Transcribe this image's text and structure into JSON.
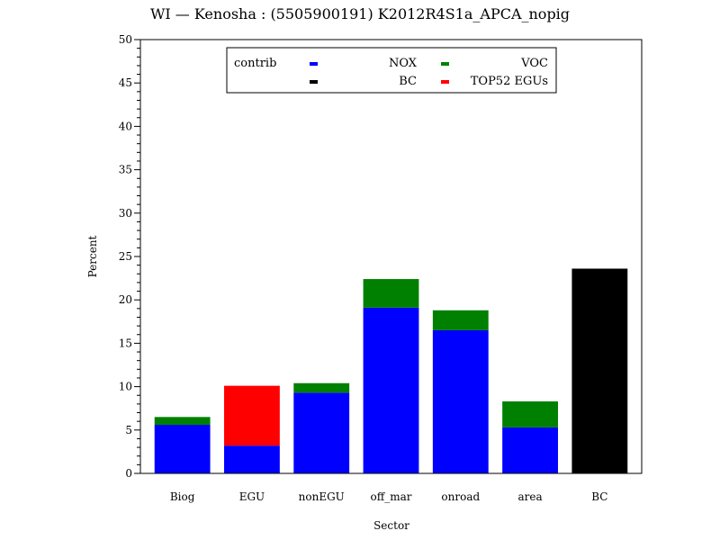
{
  "chart_data": {
    "type": "bar",
    "stacked": true,
    "title": "WI  —  Kenosha  :  (5505900191)  K2012R4S1a_APCA_nopig",
    "xlabel": "Sector",
    "ylabel": "Percent",
    "ylim": [
      0,
      50
    ],
    "y_ticks": [
      0,
      5,
      10,
      15,
      20,
      25,
      30,
      35,
      40,
      45,
      50
    ],
    "categories": [
      "Biog",
      "EGU",
      "nonEGU",
      "off_mar",
      "onroad",
      "area",
      "BC"
    ],
    "series": [
      {
        "name": "NOX",
        "color": "#0000ff",
        "values": [
          5.6,
          3.2,
          9.3,
          19.1,
          16.5,
          5.3,
          0
        ]
      },
      {
        "name": "VOC",
        "color": "#008000",
        "values": [
          0.9,
          0,
          1.1,
          3.3,
          2.3,
          3.0,
          0
        ]
      },
      {
        "name": "BC",
        "color": "#000000",
        "values": [
          0,
          0,
          0,
          0,
          0,
          0,
          23.6
        ]
      },
      {
        "name": "TOP52 EGUs",
        "color": "#ff0000",
        "values": [
          0,
          6.9,
          0,
          0,
          0,
          0,
          0
        ]
      }
    ],
    "legend": {
      "title": "contrib",
      "placement": "top-center"
    },
    "grid": false
  }
}
